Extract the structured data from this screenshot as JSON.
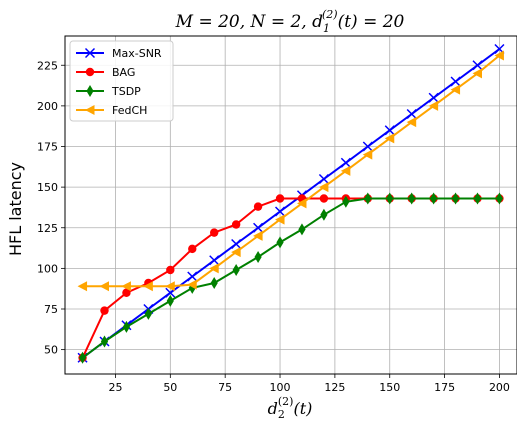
{
  "chart_data": {
    "type": "line",
    "title": "M = 20, N = 2, d_1^(2)(t) = 20",
    "title_parts": {
      "lead": "M = 20, N = 2, d",
      "sub": "1",
      "sup": "(2)",
      "tail": "(t) = 20"
    },
    "xlabel_parts": {
      "base": "d",
      "sub": "2",
      "sup": "(2)",
      "tail": "(t)"
    },
    "ylabel": "HFL latency",
    "xlim": [
      2,
      208
    ],
    "ylim": [
      35,
      243
    ],
    "xticks": [
      25,
      50,
      75,
      100,
      125,
      150,
      175,
      200
    ],
    "yticks": [
      50,
      75,
      100,
      125,
      150,
      175,
      200,
      225
    ],
    "grid": true,
    "legend_position": "top-left",
    "x": [
      10,
      20,
      30,
      40,
      50,
      60,
      70,
      80,
      90,
      100,
      110,
      120,
      130,
      140,
      150,
      160,
      170,
      180,
      190,
      200
    ],
    "series": [
      {
        "name": "Max-SNR",
        "color": "#0000ff",
        "marker": "x",
        "values": [
          45,
          55,
          65,
          75,
          85,
          95,
          105,
          115,
          125,
          135,
          145,
          155,
          165,
          175,
          185,
          195,
          205,
          215,
          225,
          235
        ]
      },
      {
        "name": "BAG",
        "color": "#ff0000",
        "marker": "circle",
        "values": [
          45,
          74,
          85,
          91,
          99,
          112,
          122,
          127,
          138,
          143,
          143,
          143,
          143,
          143,
          143,
          143,
          143,
          143,
          143,
          143
        ]
      },
      {
        "name": "TSDP",
        "color": "#008000",
        "marker": "diamond",
        "values": [
          45,
          55,
          64,
          72,
          80,
          88,
          91,
          99,
          107,
          116,
          124,
          133,
          141,
          143,
          143,
          143,
          143,
          143,
          143,
          143
        ]
      },
      {
        "name": "FedCH",
        "color": "#ffa500",
        "marker": "triangle-left",
        "values": [
          89,
          89,
          89,
          89,
          89,
          90,
          100,
          110,
          120,
          130,
          140,
          150,
          160,
          170,
          180,
          190,
          200,
          210,
          220,
          231
        ]
      }
    ]
  }
}
